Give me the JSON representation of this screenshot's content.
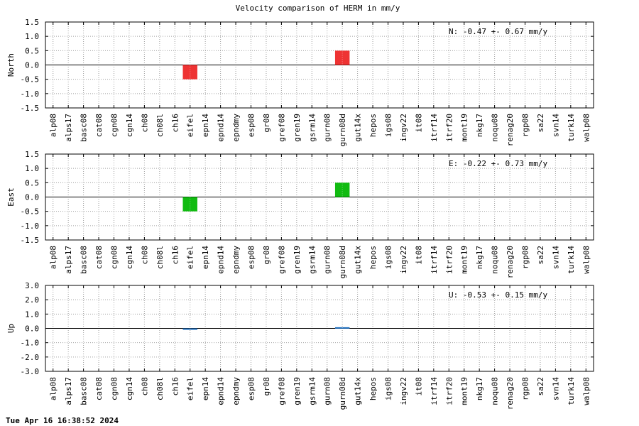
{
  "title": "Velocity comparison of HERM in mm/y",
  "timestamp": "Tue Apr 16 16:38:52 2024",
  "chart_data": {
    "type": "bar",
    "title": "Velocity comparison of HERM in mm/y",
    "categories": [
      "alp08",
      "alps17",
      "basc08",
      "cat08",
      "cgn08",
      "cgn14",
      "ch08",
      "ch08l",
      "ch16",
      "eifel",
      "epn14",
      "epnd14",
      "epndmy",
      "esp08",
      "gr08",
      "gref08",
      "gren19",
      "gsrm14",
      "gurn08",
      "gurn08d",
      "gut14x",
      "hepos",
      "igs08",
      "ingv22",
      "it08",
      "itrf14",
      "itrf20",
      "mont19",
      "nkg17",
      "noqu08",
      "renag20",
      "rgp08",
      "sa22",
      "svn14",
      "turk14",
      "walp08"
    ],
    "grid": true,
    "panels": [
      {
        "ylabel": "North",
        "ylim": [
          -1.5,
          1.5
        ],
        "yticks": [
          "1.5",
          "1.0",
          "0.5",
          "0.0",
          "-0.5",
          "-1.0",
          "-1.5"
        ],
        "color": "#ee3333",
        "annotation": "N:  -0.47 +-  0.67 mm/y",
        "values": [
          null,
          null,
          null,
          null,
          null,
          null,
          null,
          null,
          null,
          -0.5,
          null,
          null,
          null,
          null,
          null,
          null,
          null,
          null,
          null,
          0.5,
          null,
          null,
          null,
          null,
          null,
          null,
          null,
          null,
          null,
          null,
          null,
          null,
          null,
          null,
          null,
          null
        ]
      },
      {
        "ylabel": "East",
        "ylim": [
          -1.5,
          1.5
        ],
        "yticks": [
          "1.5",
          "1.0",
          "0.5",
          "0.0",
          "-0.5",
          "-1.0",
          "-1.5"
        ],
        "color": "#11bb11",
        "annotation": "E:  -0.22 +-  0.73 mm/y",
        "values": [
          null,
          null,
          null,
          null,
          null,
          null,
          null,
          null,
          null,
          -0.5,
          null,
          null,
          null,
          null,
          null,
          null,
          null,
          null,
          null,
          0.5,
          null,
          null,
          null,
          null,
          null,
          null,
          null,
          null,
          null,
          null,
          null,
          null,
          null,
          null,
          null,
          null
        ]
      },
      {
        "ylabel": "Up",
        "ylim": [
          -3.0,
          3.0
        ],
        "yticks": [
          "3.0",
          "2.0",
          "1.0",
          "0.0",
          "-1.0",
          "-2.0",
          "-3.0"
        ],
        "color": "#1f6fbf",
        "annotation": "U:  -0.53 +-  0.15 mm/y",
        "values": [
          null,
          null,
          null,
          null,
          null,
          null,
          null,
          null,
          null,
          -0.08,
          null,
          null,
          null,
          null,
          null,
          null,
          null,
          null,
          null,
          0.08,
          null,
          null,
          null,
          null,
          null,
          null,
          null,
          null,
          null,
          null,
          null,
          null,
          null,
          null,
          null,
          null
        ]
      }
    ]
  }
}
